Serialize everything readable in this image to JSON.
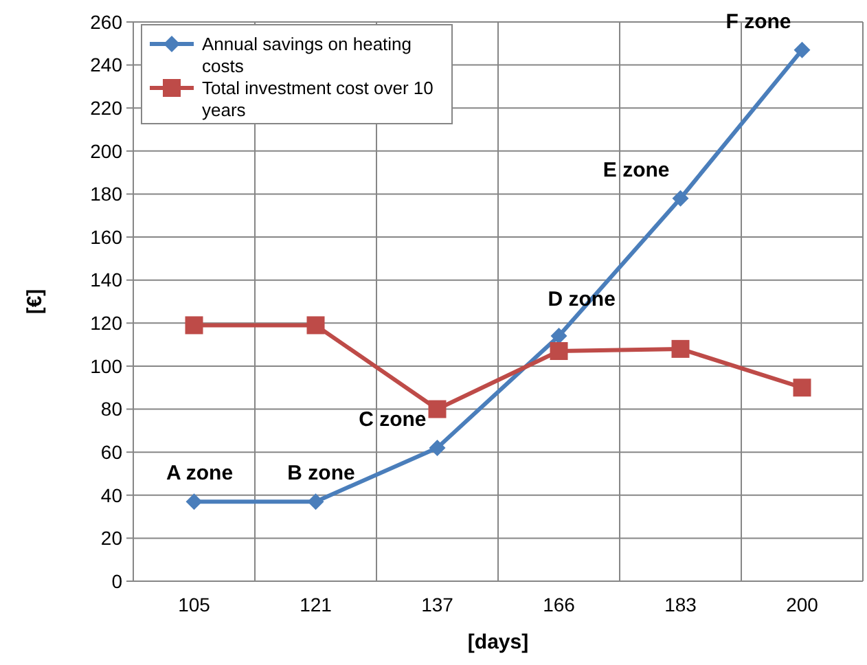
{
  "chart_data": {
    "type": "line",
    "xlabel": "[days]",
    "ylabel": "[€]",
    "categories": [
      "105",
      "121",
      "137",
      "166",
      "183",
      "200"
    ],
    "series": [
      {
        "name": "Annual savings on heating costs",
        "color": "#4a7ebb",
        "values": [
          37,
          37,
          62,
          114,
          178,
          247
        ],
        "marker": "diamond"
      },
      {
        "name": "Total investment cost over 10 years",
        "color": "#be4b48",
        "values": [
          119,
          119,
          80,
          107,
          108,
          90
        ],
        "marker": "square"
      }
    ],
    "ylim": [
      0,
      260
    ],
    "yticks": [
      0,
      20,
      40,
      60,
      80,
      100,
      120,
      140,
      160,
      180,
      200,
      220,
      240,
      260
    ],
    "grid": true,
    "legend": "top left",
    "line_style": "solid",
    "annotations": [
      {
        "text": "A zone",
        "x": "105",
        "y": 37
      },
      {
        "text": "B zone",
        "x": "121",
        "y": 37
      },
      {
        "text": "C zone",
        "x": "137",
        "y": 62
      },
      {
        "text": "D zone",
        "x": "166",
        "y": 114
      },
      {
        "text": "E zone",
        "x": "183",
        "y": 178
      },
      {
        "text": "F zone",
        "x": "200",
        "y": 247
      }
    ]
  }
}
